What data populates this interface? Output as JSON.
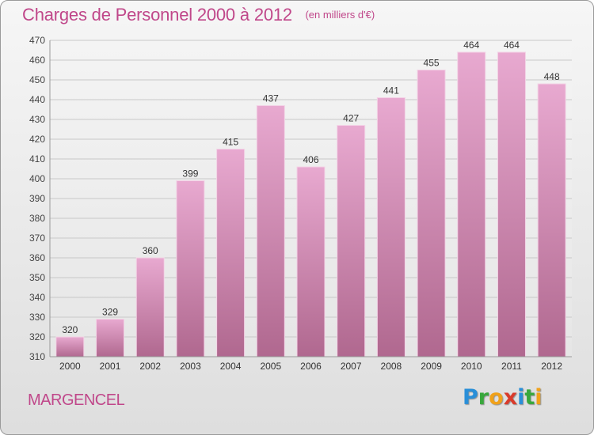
{
  "header": {
    "title": "Charges de Personnel 2000 à 2012",
    "subtitle": "(en milliers d'€)"
  },
  "footer": {
    "commune": "MARGENCEL",
    "logo_letters": [
      {
        "char": "P",
        "color": "#2a8fd8"
      },
      {
        "char": "r",
        "color": "#39a83c"
      },
      {
        "char": "o",
        "color": "#f0a11a"
      },
      {
        "char": "x",
        "color": "#d93b2b"
      },
      {
        "char": "i",
        "color": "#2a8fd8"
      },
      {
        "char": "t",
        "color": "#39a83c"
      },
      {
        "char": "i",
        "color": "#f0a11a"
      }
    ]
  },
  "colors": {
    "accent": "#c0478a",
    "bar_top": "#e8a9d0",
    "bar_bottom": "#b0688f",
    "grid": "#c8c8c8"
  },
  "chart_data": {
    "type": "bar",
    "title": "Charges de Personnel 2000 à 2012",
    "subtitle": "(en milliers d'€)",
    "categories": [
      "2000",
      "2001",
      "2002",
      "2003",
      "2004",
      "2005",
      "2006",
      "2007",
      "2008",
      "2009",
      "2010",
      "2011",
      "2012"
    ],
    "values": [
      320,
      329,
      360,
      399,
      415,
      437,
      406,
      427,
      441,
      455,
      464,
      464,
      448
    ],
    "ylim": [
      310,
      470
    ],
    "ytick_step": 10,
    "grid": true,
    "data_labels": true,
    "xlabel": "",
    "ylabel": ""
  }
}
